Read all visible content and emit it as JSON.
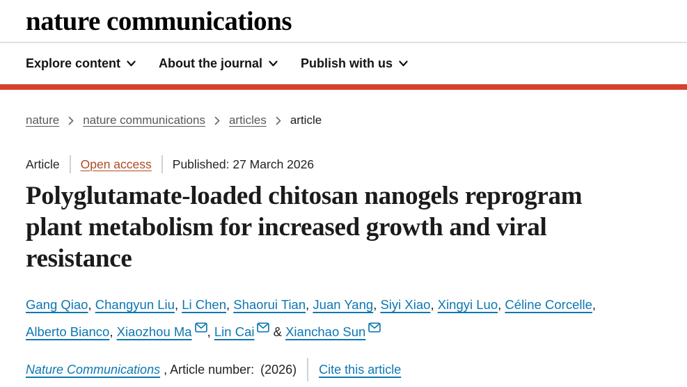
{
  "masthead": {
    "logo": "nature communications"
  },
  "nav": {
    "items": [
      {
        "label": "Explore content"
      },
      {
        "label": "About the journal"
      },
      {
        "label": "Publish with us"
      }
    ]
  },
  "breadcrumb": {
    "items": [
      {
        "label": "nature",
        "current": false
      },
      {
        "label": "nature communications",
        "current": false
      },
      {
        "label": "articles",
        "current": false
      },
      {
        "label": "article",
        "current": true
      }
    ]
  },
  "article": {
    "type_label": "Article",
    "access_label": "Open access",
    "published_label": "Published: 27 March 2026",
    "title": "Polyglutamate-loaded chitosan nanogels reprogram plant metabolism for increased growth and viral resistance",
    "title_lines": [
      "Polyglutamate-loaded chitosan nanogels reprogram",
      "plant metabolism for increased growth and viral",
      "resistance"
    ],
    "authors": [
      {
        "name": "Gang Qiao",
        "email": false
      },
      {
        "name": "Changyun Liu",
        "email": false
      },
      {
        "name": "Li Chen",
        "email": false
      },
      {
        "name": "Shaorui Tian",
        "email": false
      },
      {
        "name": "Juan Yang",
        "email": false
      },
      {
        "name": "Siyi Xiao",
        "email": false
      },
      {
        "name": "Xingyi Luo",
        "email": false
      },
      {
        "name": "Céline Corcelle",
        "email": false
      },
      {
        "name": "Alberto Bianco",
        "email": false
      },
      {
        "name": "Xiaozhou Ma",
        "email": true
      },
      {
        "name": "Lin Cai",
        "email": true
      },
      {
        "name": "Xianchao Sun",
        "email": true
      }
    ],
    "citation": {
      "journal": "Nature Communications",
      "suffix": ", Article number:",
      "year": "(2026)",
      "cite_label": "Cite this article"
    }
  },
  "colors": {
    "accent_red": "#d6412e",
    "link_blue": "#0d77b2",
    "open_access": "#b04a21",
    "separator": "#c9d3da"
  }
}
